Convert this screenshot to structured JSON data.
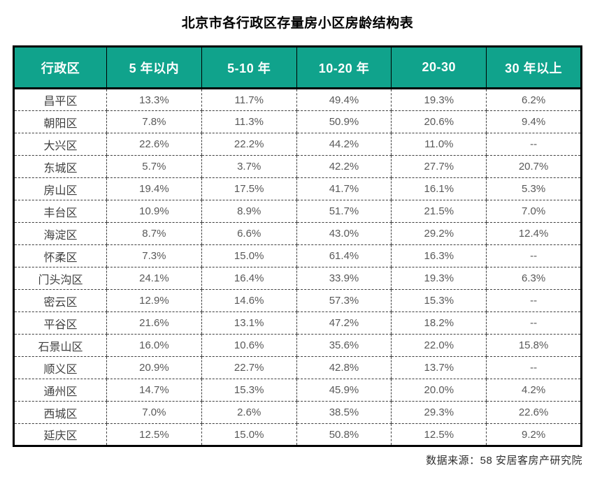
{
  "title": "北京市各行政区存量房小区房龄结构表",
  "source_note": "数据来源：58 安居客房产研究院",
  "colors": {
    "header_bg": "#10a38c",
    "header_text": "#ffffff",
    "district_text": "#3f3f3f",
    "value_text": "#595959",
    "border": "#000000"
  },
  "chart_data": {
    "type": "table",
    "title": "北京市各行政区存量房小区房龄结构表",
    "columns": [
      "行政区",
      "5 年以内",
      "5-10 年",
      "10-20 年",
      "20-30",
      "30 年以上"
    ],
    "rows": [
      [
        "昌平区",
        "13.3%",
        "11.7%",
        "49.4%",
        "19.3%",
        "6.2%"
      ],
      [
        "朝阳区",
        "7.8%",
        "11.3%",
        "50.9%",
        "20.6%",
        "9.4%"
      ],
      [
        "大兴区",
        "22.6%",
        "22.2%",
        "44.2%",
        "11.0%",
        "--"
      ],
      [
        "东城区",
        "5.7%",
        "3.7%",
        "42.2%",
        "27.7%",
        "20.7%"
      ],
      [
        "房山区",
        "19.4%",
        "17.5%",
        "41.7%",
        "16.1%",
        "5.3%"
      ],
      [
        "丰台区",
        "10.9%",
        "8.9%",
        "51.7%",
        "21.5%",
        "7.0%"
      ],
      [
        "海淀区",
        "8.7%",
        "6.6%",
        "43.0%",
        "29.2%",
        "12.4%"
      ],
      [
        "怀柔区",
        "7.3%",
        "15.0%",
        "61.4%",
        "16.3%",
        "--"
      ],
      [
        "门头沟区",
        "24.1%",
        "16.4%",
        "33.9%",
        "19.3%",
        "6.3%"
      ],
      [
        "密云区",
        "12.9%",
        "14.6%",
        "57.3%",
        "15.3%",
        "--"
      ],
      [
        "平谷区",
        "21.6%",
        "13.1%",
        "47.2%",
        "18.2%",
        "--"
      ],
      [
        "石景山区",
        "16.0%",
        "10.6%",
        "35.6%",
        "22.0%",
        "15.8%"
      ],
      [
        "顺义区",
        "20.9%",
        "22.7%",
        "42.8%",
        "13.7%",
        "--"
      ],
      [
        "通州区",
        "14.7%",
        "15.3%",
        "45.9%",
        "20.0%",
        "4.2%"
      ],
      [
        "西城区",
        "7.0%",
        "2.6%",
        "38.5%",
        "29.3%",
        "22.6%"
      ],
      [
        "延庆区",
        "12.5%",
        "15.0%",
        "50.8%",
        "12.5%",
        "9.2%"
      ]
    ]
  }
}
